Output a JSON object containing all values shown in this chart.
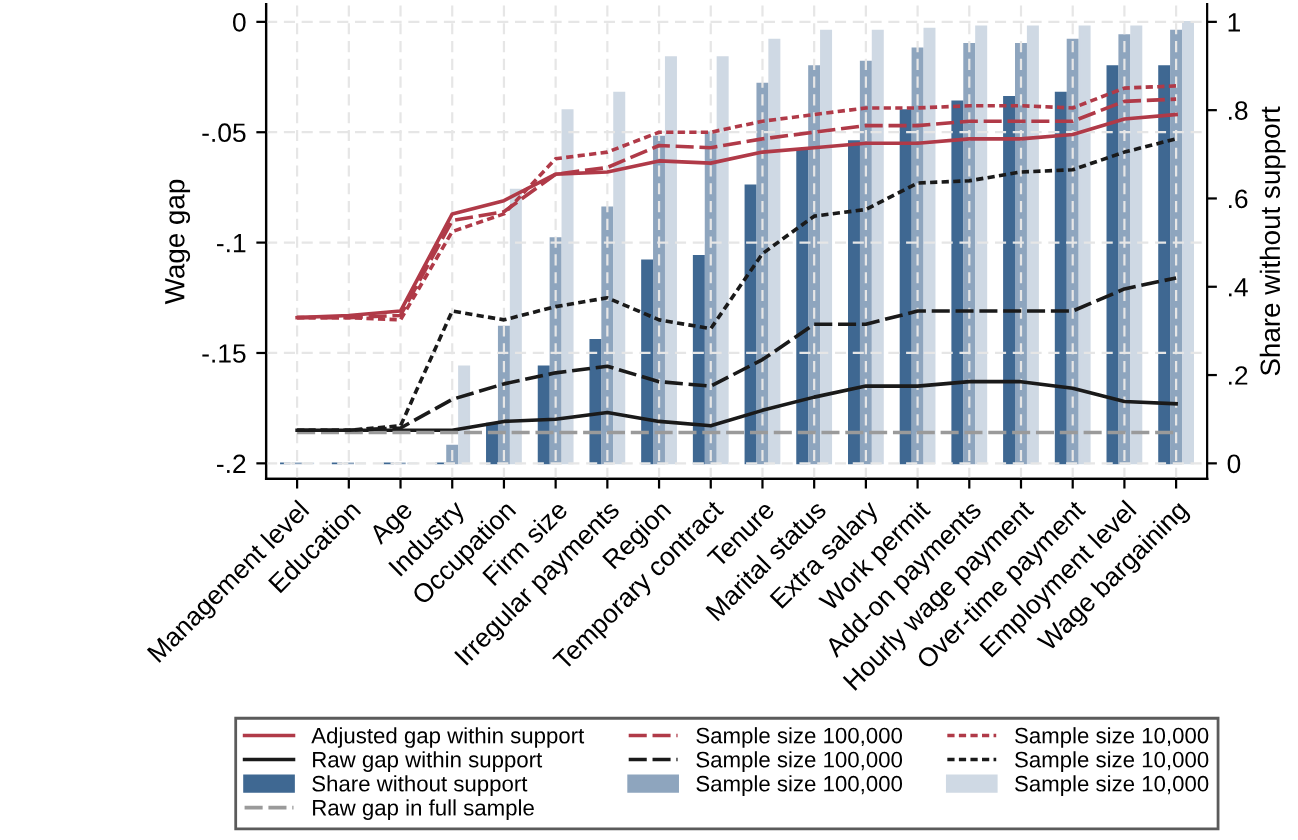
{
  "chart_data": {
    "type": "line",
    "ylabel": "Wage gap",
    "y2label": "Share without support",
    "categories": [
      "Management level",
      "Education",
      "Age",
      "Industry",
      "Occupation",
      "Firm size",
      "Irregular payments",
      "Region",
      "Temporary contract",
      "Tenure",
      "Marital status",
      "Extra salary",
      "Work permit",
      "Add-on payments",
      "Hourly wage payment",
      "Over-time payment",
      "Employment level",
      "Wage bargaining"
    ],
    "ylim": [
      -0.207,
      0.008
    ],
    "yticks": [
      {
        "value": -0.2,
        "label": "-.2"
      },
      {
        "value": -0.15,
        "label": "-.15"
      },
      {
        "value": -0.1,
        "label": "-.1"
      },
      {
        "value": -0.05,
        "label": "-.05"
      },
      0
    ],
    "y2lim": [
      -0.035,
      1.04
    ],
    "y2ticks": [
      0,
      {
        "value": 0.2,
        "label": ".2"
      },
      {
        "value": 0.4,
        "label": ".4"
      },
      {
        "value": 0.6,
        "label": ".6"
      },
      {
        "value": 0.8,
        "label": ".8"
      },
      1
    ],
    "grid": true,
    "legend": "bottom",
    "series": [
      {
        "name": "Adjusted gap within support",
        "line_style": "solid",
        "color": "#b03a48",
        "values": [
          -0.134,
          -0.133,
          -0.131,
          -0.087,
          -0.081,
          -0.069,
          -0.068,
          -0.063,
          -0.064,
          -0.059,
          -0.057,
          -0.055,
          -0.055,
          -0.053,
          -0.053,
          -0.051,
          -0.044,
          -0.042
        ]
      },
      {
        "name": "Raw gap within support",
        "line_style": "solid",
        "color": "#1a1a1a",
        "values": [
          -0.185,
          -0.185,
          -0.185,
          -0.185,
          -0.181,
          -0.18,
          -0.177,
          -0.181,
          -0.183,
          -0.176,
          -0.17,
          -0.165,
          -0.165,
          -0.163,
          -0.163,
          -0.166,
          -0.172,
          -0.173
        ]
      },
      {
        "name": "Share without support",
        "type": "bar",
        "axis": "y2",
        "color": "#3f6892",
        "values": [
          0,
          0,
          0,
          0,
          0.09,
          0.22,
          0.28,
          0.46,
          0.47,
          0.63,
          0.71,
          0.73,
          0.8,
          0.82,
          0.83,
          0.84,
          0.9,
          0.9
        ]
      },
      {
        "name": "Raw gap in full sample",
        "line_style": "dashed",
        "color": "#9a9a9a",
        "values": [
          -0.186,
          -0.186,
          -0.186,
          -0.186,
          -0.186,
          -0.186,
          -0.186,
          -0.186,
          -0.186,
          -0.186,
          -0.186,
          -0.186,
          -0.186,
          -0.186,
          -0.186,
          -0.186,
          -0.186,
          -0.186
        ]
      },
      {
        "name": "Sample size 100,000",
        "line_style": "dashed",
        "color": "#b03a48",
        "values": [
          -0.134,
          -0.134,
          -0.133,
          -0.09,
          -0.086,
          -0.069,
          -0.066,
          -0.056,
          -0.057,
          -0.053,
          -0.05,
          -0.047,
          -0.047,
          -0.045,
          -0.045,
          -0.045,
          -0.036,
          -0.035
        ]
      },
      {
        "name": "Sample size 100,000",
        "line_style": "dashed",
        "color": "#1a1a1a",
        "values": [
          -0.185,
          -0.185,
          -0.184,
          -0.171,
          -0.164,
          -0.159,
          -0.156,
          -0.163,
          -0.165,
          -0.153,
          -0.137,
          -0.137,
          -0.131,
          -0.131,
          -0.131,
          -0.131,
          -0.121,
          -0.116
        ]
      },
      {
        "name": "Sample size 100,000",
        "type": "bar",
        "axis": "y2",
        "color": "#8ea5be",
        "values": [
          0,
          0,
          0,
          0.04,
          0.31,
          0.51,
          0.58,
          0.74,
          0.75,
          0.86,
          0.9,
          0.91,
          0.94,
          0.95,
          0.95,
          0.96,
          0.97,
          0.98
        ]
      },
      {
        "name": "Sample size 10,000",
        "line_style": "dotted",
        "color": "#b03a48",
        "values": [
          -0.134,
          -0.134,
          -0.135,
          -0.095,
          -0.087,
          -0.062,
          -0.059,
          -0.05,
          -0.05,
          -0.045,
          -0.042,
          -0.039,
          -0.039,
          -0.038,
          -0.038,
          -0.039,
          -0.03,
          -0.029
        ]
      },
      {
        "name": "Sample size 10,000",
        "line_style": "dotted",
        "color": "#1a1a1a",
        "values": [
          -0.185,
          -0.185,
          -0.183,
          -0.131,
          -0.135,
          -0.129,
          -0.125,
          -0.135,
          -0.139,
          -0.105,
          -0.088,
          -0.085,
          -0.073,
          -0.072,
          -0.068,
          -0.067,
          -0.059,
          -0.053
        ]
      },
      {
        "name": "Sample size 10,000",
        "type": "bar",
        "axis": "y2",
        "color": "#cfd9e4",
        "values": [
          0,
          0,
          0,
          0.22,
          0.62,
          0.8,
          0.84,
          0.92,
          0.92,
          0.96,
          0.98,
          0.98,
          0.985,
          0.99,
          0.99,
          0.99,
          0.99,
          1.0
        ]
      }
    ]
  }
}
